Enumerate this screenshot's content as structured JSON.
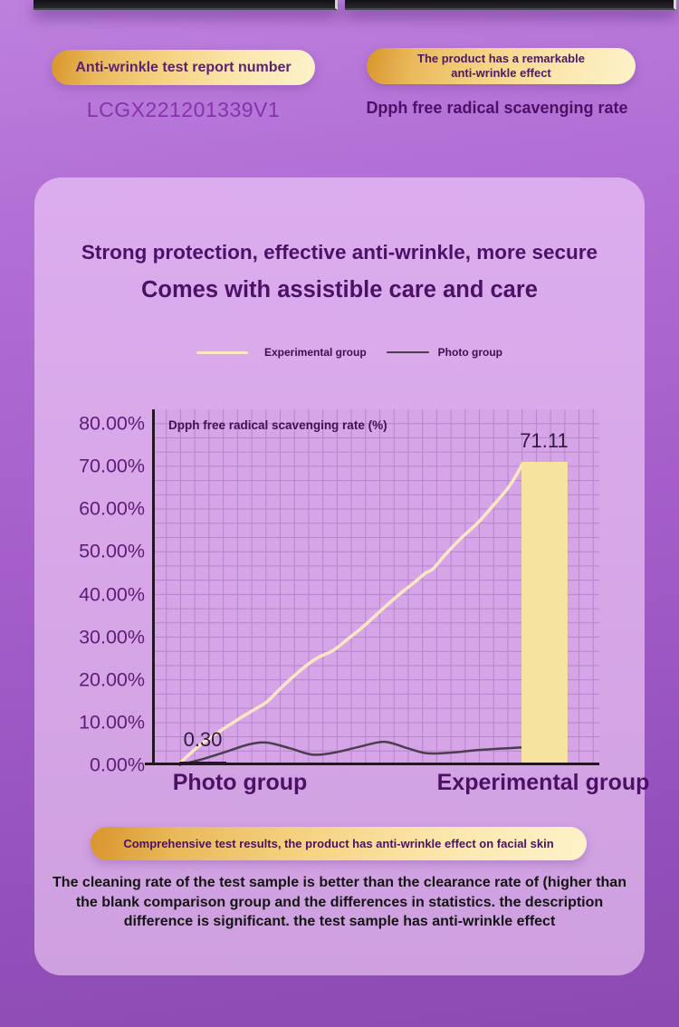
{
  "colors": {
    "gold_gradient_start": "#d8952c",
    "gold_gradient_end": "#fdf2ca",
    "heading_purple": "#4c1166",
    "page_purple": "#a55ec9",
    "card_purple": "#d7a7e8",
    "axis_dark": "#241627"
  },
  "header": {
    "report_badge": "Anti-wrinkle test report number",
    "report_number": "LCGX221201339V1",
    "effect_badge_line1": "The product has a remarkable",
    "effect_badge_line2": "anti-wrinkle effect",
    "effect_caption": "Dpph free radical scavenging rate"
  },
  "card": {
    "title": "Strong protection, effective anti-wrinkle, more secure",
    "subtitle": "Comes with assistible care and care",
    "result_badge": "Comprehensive test results, the product has anti-wrinkle effect on facial skin",
    "footnote_lines": [
      "The cleaning rate of the test sample is better than the clearance rate of (higher than",
      "the blank comparison group and the differences in statistics. the description",
      "difference is significant. the test sample has anti-wrinkle effect"
    ]
  },
  "chart_data": {
    "type": "line",
    "title": "Dpph free radical scavenging rate (%)",
    "categories": [
      "Photo group",
      "Experimental group"
    ],
    "legend": [
      "Experimental group",
      "Photo group"
    ],
    "legend_position": "top",
    "grid": true,
    "ylim": [
      0,
      80
    ],
    "y_ticks": [
      "80.00%",
      "70.00%",
      "60.00%",
      "50.00%",
      "40.00%",
      "30.00%",
      "20.00%",
      "10.00%",
      "0.00%"
    ],
    "bars": [
      {
        "category": "Photo group",
        "value": 0.3,
        "label": "0.30",
        "color": "#241627",
        "x0": 0.061,
        "x1": 0.166
      },
      {
        "category": "Experimental group",
        "value": 71.11,
        "label": "71.11",
        "color": "#f6e39e",
        "x0": 0.826,
        "x1": 0.929
      }
    ],
    "series": [
      {
        "name": "Photo group",
        "color": "#4a3d4e",
        "stroke_width": 2.5,
        "points": [
          [
            0.061,
            0.1
          ],
          [
            0.115,
            1.5
          ],
          [
            0.166,
            3.2
          ],
          [
            0.217,
            4.9
          ],
          [
            0.257,
            5.3
          ],
          [
            0.308,
            4.0
          ],
          [
            0.358,
            2.5
          ],
          [
            0.409,
            3.0
          ],
          [
            0.47,
            4.5
          ],
          [
            0.52,
            5.5
          ],
          [
            0.571,
            4.0
          ],
          [
            0.615,
            2.8
          ],
          [
            0.672,
            3.0
          ],
          [
            0.733,
            3.6
          ],
          [
            0.794,
            4.0
          ],
          [
            0.828,
            4.2
          ]
        ]
      },
      {
        "name": "Experimental group",
        "color": "#fce6c4",
        "stroke_width": 3.5,
        "points": [
          [
            0.061,
            0.4
          ],
          [
            0.109,
            4.9
          ],
          [
            0.15,
            7.9
          ],
          [
            0.19,
            10.6
          ],
          [
            0.231,
            13.2
          ],
          [
            0.257,
            14.9
          ],
          [
            0.298,
            19.1
          ],
          [
            0.344,
            23.3
          ],
          [
            0.372,
            25.3
          ],
          [
            0.405,
            26.9
          ],
          [
            0.439,
            29.7
          ],
          [
            0.47,
            32.3
          ],
          [
            0.51,
            36.1
          ],
          [
            0.551,
            39.9
          ],
          [
            0.587,
            42.9
          ],
          [
            0.611,
            45.0
          ],
          [
            0.628,
            46.0
          ],
          [
            0.656,
            49.4
          ],
          [
            0.692,
            53.3
          ],
          [
            0.729,
            56.9
          ],
          [
            0.763,
            60.9
          ],
          [
            0.794,
            64.7
          ],
          [
            0.814,
            67.9
          ],
          [
            0.828,
            70.6
          ]
        ]
      }
    ]
  }
}
